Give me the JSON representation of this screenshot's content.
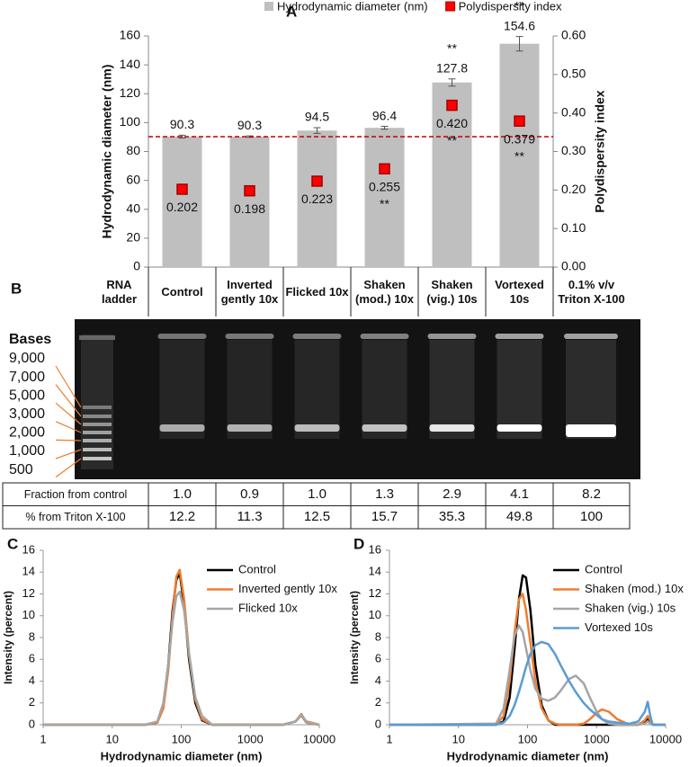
{
  "chart_data": [
    {
      "type": "bar",
      "panel_label": "A",
      "categories": [
        "Control",
        "Inverted gently 10x",
        "Flicked 10x",
        "Shaken (mod.) 10x",
        "Shaken (vig.) 10s",
        "Vortexed 10s"
      ],
      "y_label": "Hydrodynamic diameter (nm)",
      "y2_label": "Polydispersity index",
      "ylim": [
        0,
        160
      ],
      "yticks": [
        0,
        20,
        40,
        60,
        80,
        100,
        120,
        140,
        160
      ],
      "y2lim": [
        0,
        0.6
      ],
      "y2ticks": [
        {
          "value": 0,
          "label": "0.00"
        },
        {
          "value": 0.1,
          "label": "0.10"
        },
        {
          "value": 0.2,
          "label": "0.20"
        },
        {
          "value": 0.3,
          "label": "0.30"
        },
        {
          "value": 0.4,
          "label": "0.40"
        },
        {
          "value": 0.5,
          "label": "0.50"
        },
        {
          "value": 0.6,
          "label": "0.60"
        }
      ],
      "grid": false,
      "legend": "top",
      "reference_line": {
        "value": 90.3,
        "color": "#c00000"
      },
      "series": [
        {
          "name": "Hydrodynamic diameter (nm)",
          "type": "bar",
          "color": "#bfbfbf",
          "values": [
            90.3,
            90.3,
            94.5,
            96.4,
            127.8,
            154.6
          ],
          "errors": [
            1,
            0.5,
            2,
            1,
            2.5,
            5
          ],
          "significance": [
            null,
            null,
            null,
            null,
            "**",
            "**"
          ]
        },
        {
          "name": "Polydispersity index",
          "type": "scatter",
          "axis": "y2",
          "color": "#ff0000",
          "values": [
            0.202,
            0.198,
            0.223,
            0.255,
            0.42,
            0.379
          ],
          "value_labels": [
            "0.202",
            "0.198",
            "0.223",
            "0.255",
            "0.420",
            "0.379"
          ],
          "errors": [
            0.01,
            0.004,
            0.008,
            0.007,
            0.008,
            0.013
          ],
          "significance": [
            null,
            null,
            null,
            "**",
            "**",
            "**"
          ]
        }
      ]
    },
    {
      "type": "line",
      "panel_label": "C",
      "x_label": "Hydrodynamic diameter (nm)",
      "y_label": "Intensity (percent)",
      "log_x": true,
      "xlim": [
        1,
        10000
      ],
      "xticks": [
        1,
        10,
        100,
        1000,
        10000
      ],
      "ylim": [
        0,
        16
      ],
      "yticks": [
        0,
        2,
        4,
        6,
        8,
        10,
        12,
        14,
        16
      ],
      "legend": "upper right",
      "x": [
        1,
        30,
        45,
        55,
        65,
        75,
        85,
        95,
        110,
        130,
        160,
        200,
        280,
        3000,
        4500,
        5500,
        6500,
        10000
      ],
      "series": [
        {
          "name": "Control",
          "color": "#000000",
          "values": [
            0,
            0,
            0.2,
            1.8,
            5.5,
            10.5,
            13.3,
            13.9,
            11,
            6,
            2,
            0.4,
            0,
            0,
            0.3,
            0.9,
            0.2,
            0
          ]
        },
        {
          "name": "Inverted gently 10x",
          "color": "#ed7d31",
          "values": [
            0,
            0,
            0.2,
            1.5,
            5,
            10,
            13.6,
            14.2,
            11.5,
            6.5,
            2.3,
            0.5,
            0,
            0,
            0.3,
            0.9,
            0.3,
            0
          ]
        },
        {
          "name": "Flicked 10x",
          "color": "#a5a5a5",
          "values": [
            0,
            0,
            0.3,
            2,
            5.5,
            9.5,
            11.8,
            12.2,
            10.5,
            6.5,
            2.5,
            0.8,
            0,
            0,
            0.3,
            1.0,
            0.2,
            0
          ]
        }
      ]
    },
    {
      "type": "line",
      "panel_label": "D",
      "x_label": "Hydrodynamic diameter (nm)",
      "y_label": "Intensity (percent)",
      "log_x": true,
      "xlim": [
        1,
        10000
      ],
      "xticks": [
        1,
        10,
        100,
        1000,
        10000
      ],
      "ylim": [
        0,
        16
      ],
      "yticks": [
        0,
        2,
        4,
        6,
        8,
        10,
        12,
        14,
        16
      ],
      "legend": "upper right",
      "x": [
        1,
        35,
        45,
        55,
        65,
        75,
        85,
        95,
        110,
        130,
        160,
        200,
        250,
        300,
        400,
        500,
        650,
        800,
        1000,
        1200,
        1500,
        2000,
        3000,
        4000,
        5000,
        5500,
        6000,
        6500,
        10000
      ],
      "series": [
        {
          "name": "Control",
          "color": "#000000",
          "values": [
            0,
            0,
            0.3,
            2.5,
            7,
            11.5,
            13.7,
            13.5,
            10.5,
            5.5,
            1.8,
            0.4,
            0,
            0,
            0,
            0,
            0,
            0,
            0,
            0,
            0,
            0,
            0,
            0,
            0.3,
            0.6,
            0.3,
            0,
            0
          ]
        },
        {
          "name": "Shaken (mod.) 10x",
          "color": "#ed7d31",
          "values": [
            0,
            0,
            0.8,
            4,
            8.5,
            11.5,
            12,
            10.5,
            7.5,
            4,
            1.5,
            0.4,
            0.1,
            0,
            0,
            0,
            0.1,
            0.5,
            1.1,
            1.4,
            1.2,
            0.5,
            0,
            0,
            0.4,
            0.8,
            0.4,
            0,
            0
          ]
        },
        {
          "name": "Shaken (vig.) 10s",
          "color": "#a5a5a5",
          "values": [
            0,
            0.1,
            1.5,
            5,
            8.2,
            9.1,
            8.5,
            7,
            5,
            3.3,
            2.4,
            2.2,
            2.5,
            3.1,
            4.2,
            4.5,
            3.8,
            2.5,
            1.2,
            0.5,
            0.1,
            0,
            0,
            0,
            0.1,
            0.3,
            0.1,
            0,
            0
          ]
        },
        {
          "name": "Vortexed 10s",
          "color": "#5b9bd5",
          "values": [
            0,
            0,
            0.2,
            0.8,
            1.8,
            3,
            4.2,
            5.3,
            6.5,
            7.3,
            7.6,
            7.4,
            6.5,
            5.5,
            4,
            3,
            2,
            1.4,
            0.9,
            0.5,
            0.3,
            0.2,
            0.1,
            0.3,
            1.2,
            2.1,
            0.8,
            0,
            0
          ]
        }
      ]
    }
  ],
  "gel": {
    "panel_label": "B",
    "ladder_lane": "RNA ladder",
    "extra_lane": "0.1% v/v Triton X-100",
    "ladder_title": "Bases",
    "ladder_sizes": [
      {
        "value": 9000,
        "label": "9,000"
      },
      {
        "value": 7000,
        "label": "7,000"
      },
      {
        "value": 5000,
        "label": "5,000"
      },
      {
        "value": 3000,
        "label": "3,000"
      },
      {
        "value": 2000,
        "label": "2,000"
      },
      {
        "value": 1000,
        "label": "1,000"
      },
      {
        "value": 500,
        "label": "500"
      }
    ]
  },
  "table": {
    "rows": [
      {
        "label": "Fraction from control",
        "cells": [
          "1.0",
          "0.9",
          "1.0",
          "1.3",
          "2.9",
          "4.1",
          "8.2"
        ]
      },
      {
        "label": "% from Triton X-100",
        "cells": [
          "12.2",
          "11.3",
          "12.5",
          "15.7",
          "35.3",
          "49.8",
          "100"
        ]
      }
    ]
  }
}
